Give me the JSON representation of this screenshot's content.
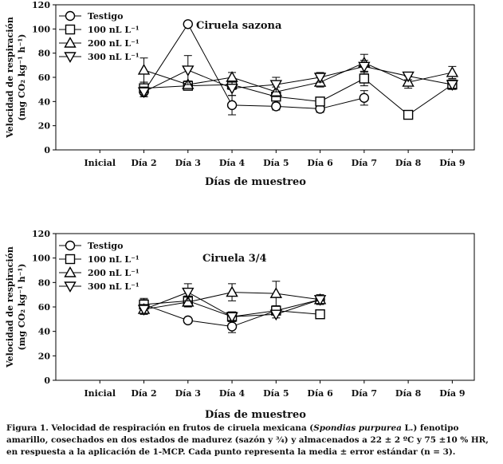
{
  "chart_data": [
    {
      "type": "line",
      "title": "Ciruela sazona",
      "ylabel_line1": "Velocidad de respiración",
      "ylabel_line2": "(mg CO₂ kg⁻¹ h⁻¹)",
      "xlabel": "Días de muestreo",
      "ylim": [
        0,
        120
      ],
      "yticks": [
        0,
        20,
        40,
        60,
        80,
        100,
        120
      ],
      "categories": [
        "Inicial",
        "Día 2",
        "Día 3",
        "Día 4",
        "Día 5",
        "Día 6",
        "Día 7",
        "Día 8",
        "Día 9"
      ],
      "series": [
        {
          "name": "Testigo",
          "marker": "circle",
          "values": [
            null,
            48,
            104,
            37,
            36,
            34,
            43,
            null,
            null
          ],
          "errors": [
            null,
            4,
            0,
            8,
            3,
            3,
            6,
            null,
            null
          ]
        },
        {
          "name": "100 nL L⁻¹",
          "marker": "square",
          "values": [
            null,
            51,
            53,
            54,
            44,
            40,
            59,
            29,
            54
          ],
          "errors": [
            null,
            5,
            3,
            4,
            3,
            3,
            6,
            0,
            4
          ]
        },
        {
          "name": "200 nL L⁻¹",
          "marker": "triangle-up",
          "values": [
            null,
            66,
            54,
            60,
            48,
            56,
            72,
            56,
            64
          ],
          "errors": [
            null,
            10,
            3,
            4,
            4,
            4,
            7,
            5,
            5
          ]
        },
        {
          "name": "300 nL L⁻¹",
          "marker": "triangle-down",
          "values": [
            null,
            48,
            66,
            51,
            54,
            60,
            69,
            61,
            54
          ],
          "errors": [
            null,
            4,
            12,
            6,
            6,
            4,
            5,
            3,
            3
          ]
        }
      ]
    },
    {
      "type": "line",
      "title": "Ciruela 3/4",
      "ylabel_line1": "Velocidad de respiración",
      "ylabel_line2": "(mg CO₂ kg⁻¹ h⁻¹)",
      "xlabel": "Días de muestreo",
      "ylim": [
        0,
        120
      ],
      "yticks": [
        0,
        20,
        40,
        60,
        80,
        100,
        120
      ],
      "categories": [
        "Inicial",
        "Día 2",
        "Día 3",
        "Día 4",
        "Día 5",
        "Día 6",
        "Día 7",
        "Día 8",
        "Día 9"
      ],
      "series": [
        {
          "name": "Testigo",
          "marker": "circle",
          "values": [
            null,
            62,
            49,
            44,
            57,
            66,
            null,
            null,
            null
          ],
          "errors": [
            null,
            5,
            2,
            5,
            3,
            3,
            null,
            null,
            null
          ]
        },
        {
          "name": "100 nL L⁻¹",
          "marker": "square",
          "values": [
            null,
            62,
            65,
            52,
            57,
            54,
            null,
            null,
            null
          ],
          "errors": [
            null,
            4,
            4,
            4,
            3,
            3,
            null,
            null,
            null
          ]
        },
        {
          "name": "200 nL L⁻¹",
          "marker": "triangle-up",
          "values": [
            null,
            58,
            64,
            72,
            71,
            66,
            null,
            null,
            null
          ],
          "errors": [
            null,
            4,
            4,
            7,
            10,
            3,
            null,
            null,
            null
          ]
        },
        {
          "name": "300 nL L⁻¹",
          "marker": "triangle-down",
          "values": [
            null,
            58,
            72,
            52,
            54,
            66,
            null,
            null,
            null
          ],
          "errors": [
            null,
            4,
            7,
            3,
            3,
            4,
            null,
            null,
            null
          ]
        }
      ]
    }
  ],
  "caption": {
    "prefix": "Figura 1. Velocidad de respiración en frutos de ciruela mexicana (",
    "species": "Spondias purpurea",
    "suffix": " L.) fenotipo amarillo, cosechados en dos estados de madurez (sazón y ¾) y almacenados a 22 ± 2 ºC y 75 ±10 % HR, en respuesta a la aplicación de 1-MCP. Cada punto representa la media ± error estándar (n = 3)."
  }
}
